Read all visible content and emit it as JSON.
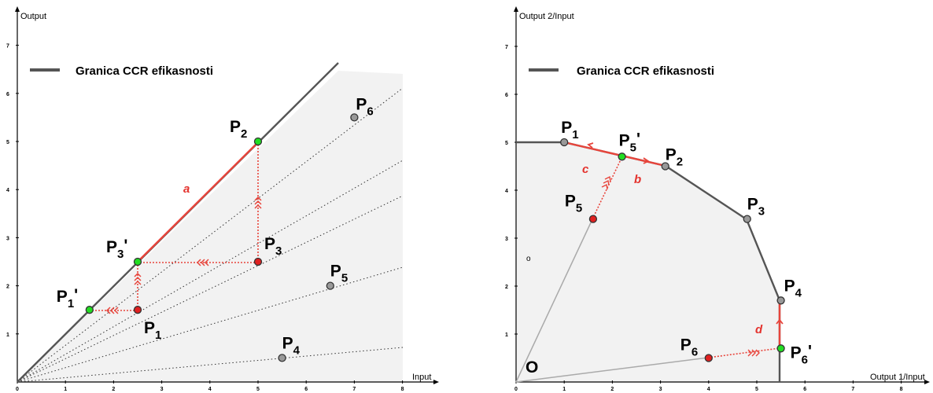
{
  "left_diagram": {
    "x_axis_label": "Input",
    "y_axis_label": "Output",
    "x_ticks": [
      "0",
      "1",
      "2",
      "3",
      "4",
      "5",
      "6",
      "7",
      "8"
    ],
    "y_ticks": [
      "1",
      "2",
      "3",
      "4",
      "5",
      "6",
      "7"
    ],
    "legend": "Granica CCR efikasnosti",
    "segment_label": "a",
    "colors": {
      "frontier": "#555555",
      "projection": "#e8453c",
      "efficient_point": "#22dd22",
      "inefficient_point": "#e02020",
      "other_point": "#999999",
      "region": "#f2f2f2"
    },
    "points": [
      {
        "label": "P",
        "sub": "1",
        "prime": "",
        "x": 2.5,
        "y": 1.5,
        "role": "inefficient"
      },
      {
        "label": "P",
        "sub": "1",
        "prime": "'",
        "x": 1.5,
        "y": 1.5,
        "role": "projection"
      },
      {
        "label": "P",
        "sub": "2",
        "prime": "",
        "x": 5,
        "y": 5,
        "role": "efficient"
      },
      {
        "label": "P",
        "sub": "3",
        "prime": "",
        "x": 5,
        "y": 2.5,
        "role": "inefficient"
      },
      {
        "label": "P",
        "sub": "3",
        "prime": "'",
        "x": 2.5,
        "y": 2.5,
        "role": "projection"
      },
      {
        "label": "P",
        "sub": "4",
        "prime": "",
        "x": 5.5,
        "y": 0.5,
        "role": "other"
      },
      {
        "label": "P",
        "sub": "5",
        "prime": "",
        "x": 6.5,
        "y": 2,
        "role": "other"
      },
      {
        "label": "P",
        "sub": "6",
        "prime": "",
        "x": 7,
        "y": 5.5,
        "role": "other"
      }
    ]
  },
  "right_diagram": {
    "x_axis_label": "Output 1/Input",
    "y_axis_label": "Output 2/Input",
    "x_ticks": [
      "0",
      "1",
      "2",
      "3",
      "4",
      "5",
      "6",
      "7",
      "8"
    ],
    "y_ticks": [
      "1",
      "2",
      "3",
      "4",
      "5",
      "6",
      "7"
    ],
    "legend": "Granica CCR efikasnosti",
    "origin_label": "O",
    "small_label": "o",
    "segment_labels": {
      "b": "b",
      "c": "c",
      "d": "d"
    },
    "points": [
      {
        "label": "P",
        "sub": "1",
        "prime": "",
        "x": 1,
        "y": 5,
        "role": "frontier"
      },
      {
        "label": "P",
        "sub": "2",
        "prime": "",
        "x": 3.1,
        "y": 4.5,
        "role": "frontier"
      },
      {
        "label": "P",
        "sub": "3",
        "prime": "",
        "x": 4.8,
        "y": 3.4,
        "role": "frontier"
      },
      {
        "label": "P",
        "sub": "4",
        "prime": "",
        "x": 5.5,
        "y": 1.7,
        "role": "frontier"
      },
      {
        "label": "P",
        "sub": "5",
        "prime": "",
        "x": 1.6,
        "y": 3.4,
        "role": "inefficient"
      },
      {
        "label": "P",
        "sub": "5",
        "prime": "'",
        "x": 2.2,
        "y": 4.7,
        "role": "projection"
      },
      {
        "label": "P",
        "sub": "6",
        "prime": "",
        "x": 4,
        "y": 0.5,
        "role": "inefficient"
      },
      {
        "label": "P",
        "sub": "6",
        "prime": "'",
        "x": 5.5,
        "y": 0.7,
        "role": "projection"
      }
    ]
  }
}
